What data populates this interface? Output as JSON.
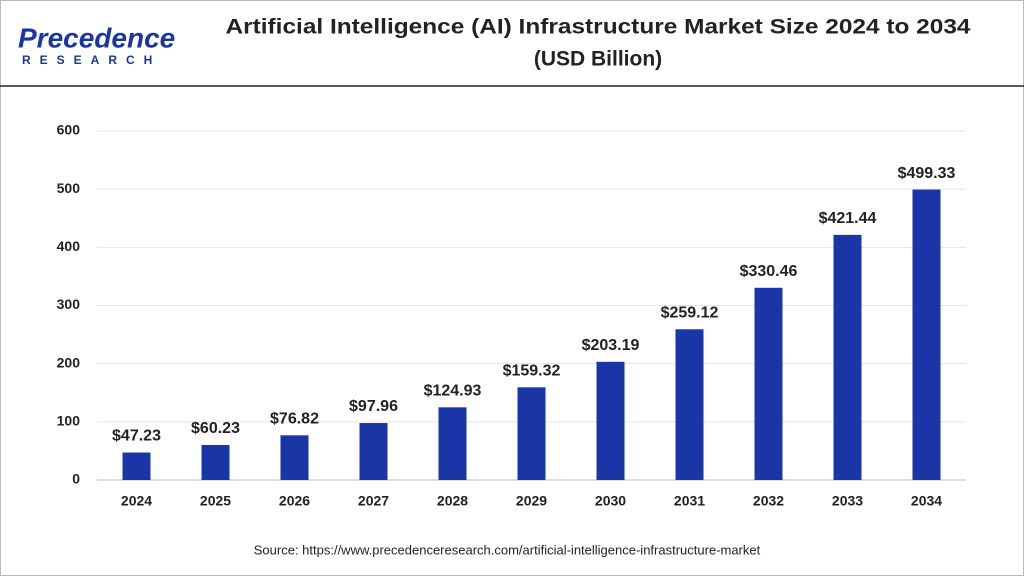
{
  "header": {
    "logo_name": "Precedence",
    "logo_sub": "RESEARCH"
  },
  "chart_data": {
    "type": "bar",
    "title": [
      "Artificial Intelligence (AI) Infrastructure Market Size 2024 to 2034",
      "(USD Billion)"
    ],
    "categories": [
      "2024",
      "2025",
      "2026",
      "2027",
      "2028",
      "2029",
      "2030",
      "2031",
      "2032",
      "2033",
      "2034"
    ],
    "values": [
      47.23,
      60.23,
      76.82,
      97.96,
      124.93,
      159.32,
      203.19,
      259.12,
      330.46,
      421.44,
      499.33
    ],
    "value_labels": [
      "$47.23",
      "$60.23",
      "$76.82",
      "$97.96",
      "$124.93",
      "$159.32",
      "$203.19",
      "$259.12",
      "$330.46",
      "$421.44",
      "$499.33"
    ],
    "color": "#1a35a6",
    "ylim": [
      0,
      600
    ],
    "yticks": [
      0,
      100,
      200,
      300,
      400,
      500,
      600
    ],
    "grid": true,
    "source": "Source: https://www.precedenceresearch.com/artificial-intelligence-infrastructure-market"
  }
}
